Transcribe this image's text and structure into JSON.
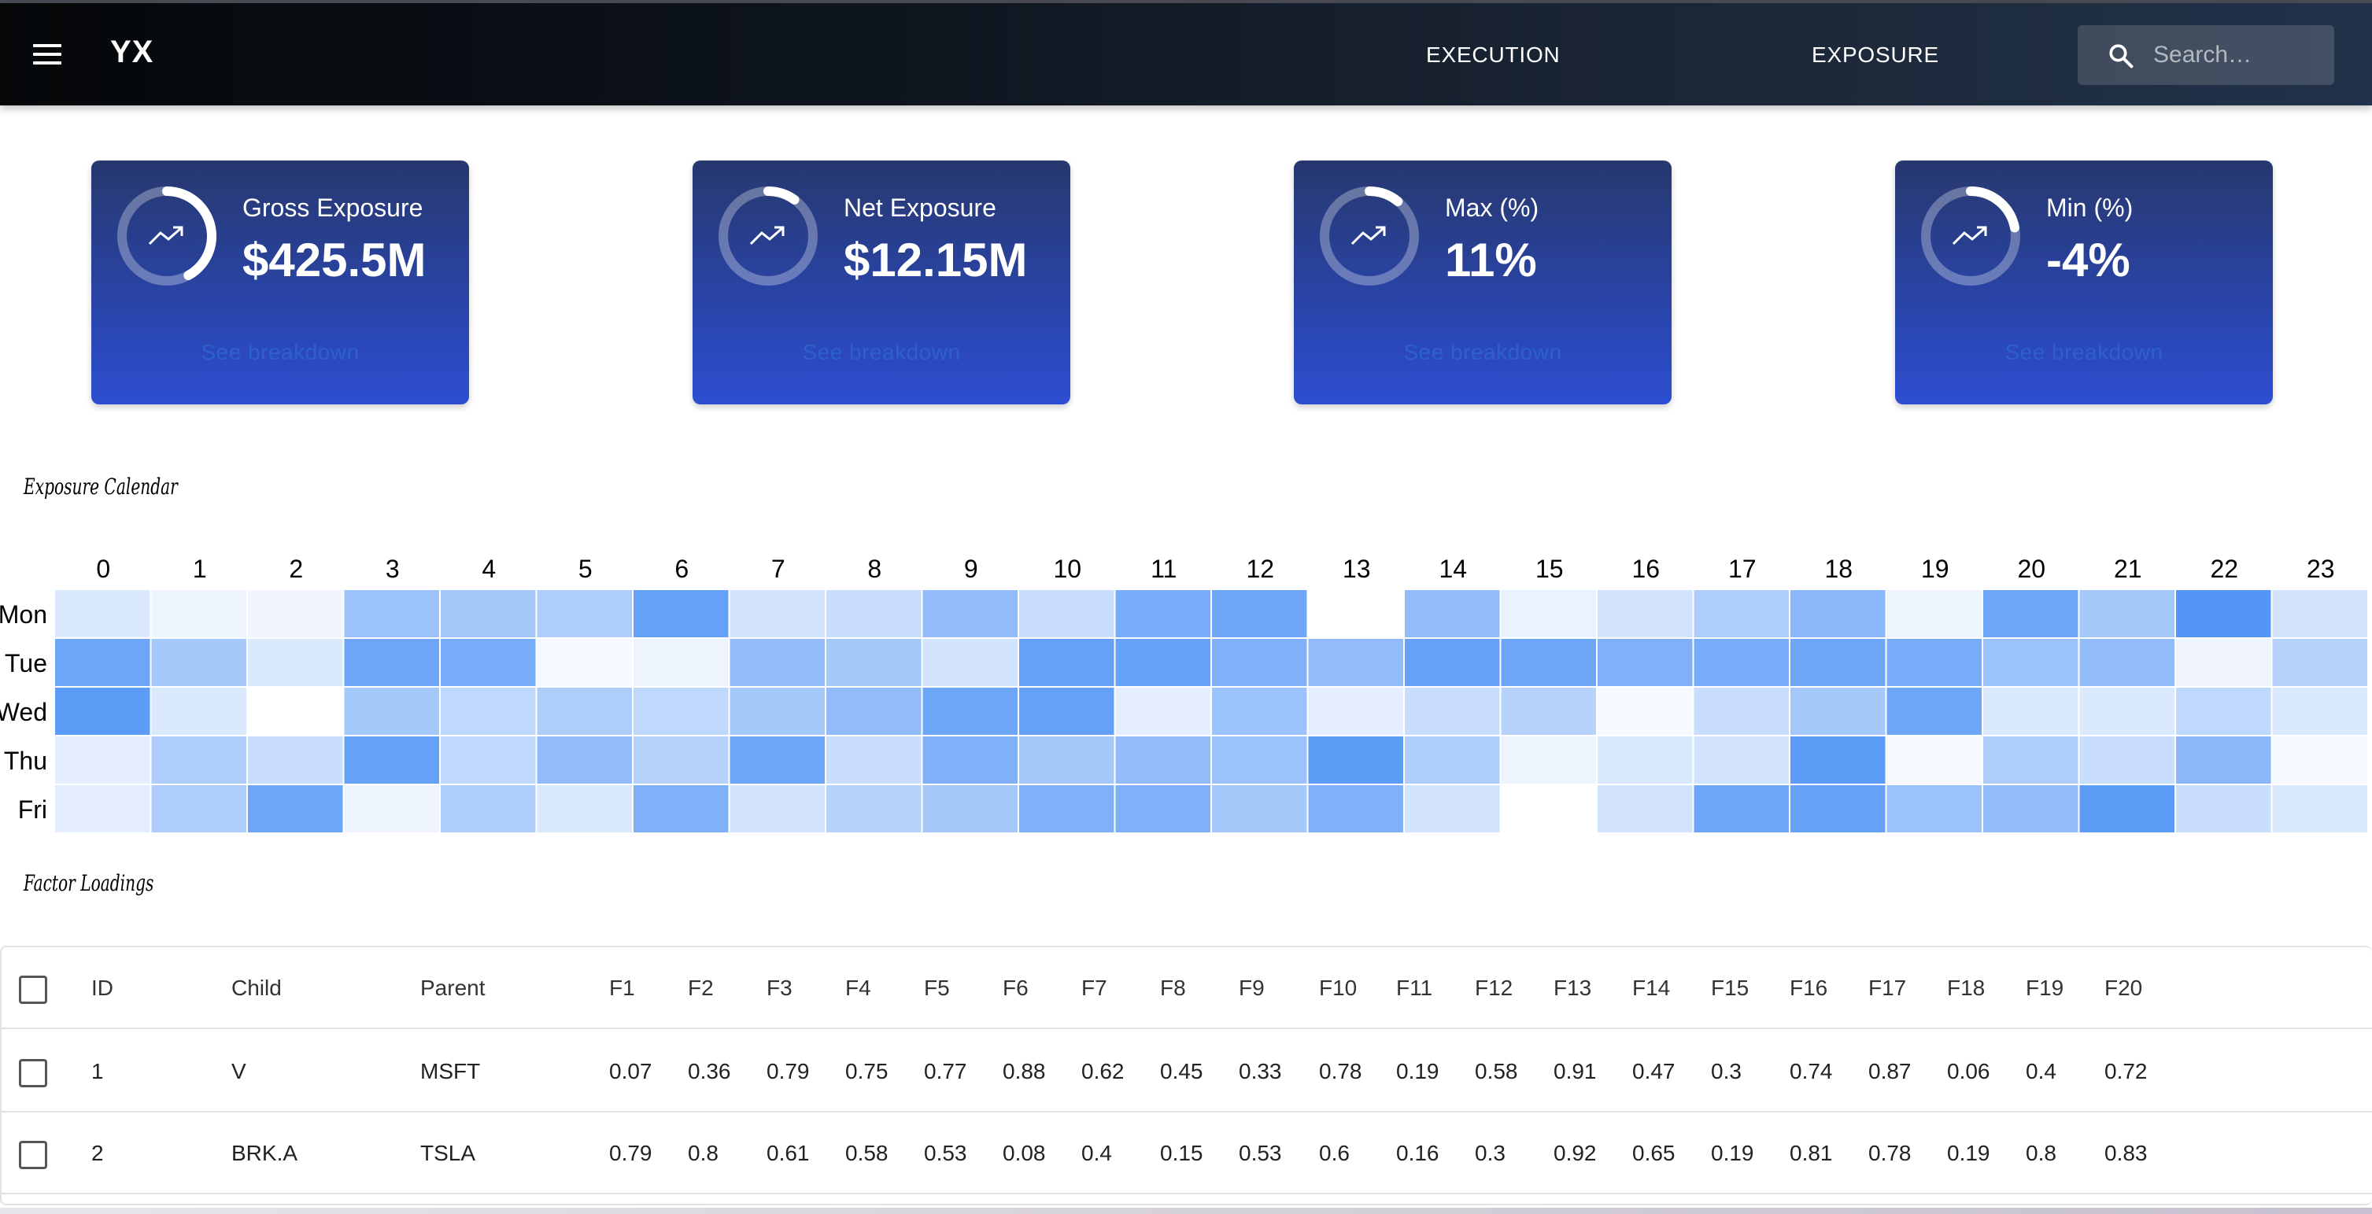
{
  "app": {
    "brand": "YX",
    "nav": [
      {
        "label": "EXECUTION"
      },
      {
        "label": "EXPOSURE"
      }
    ],
    "search": {
      "placeholder": "Search…",
      "value": ""
    }
  },
  "cards": [
    {
      "label": "Gross Exposure",
      "value": "$425.5M",
      "link": "See breakdown",
      "progress": 0.42
    },
    {
      "label": "Net Exposure",
      "value": "$12.15M",
      "link": "See breakdown",
      "progress": 0.1
    },
    {
      "label": "Max (%)",
      "value": "11%",
      "link": "See breakdown",
      "progress": 0.11
    },
    {
      "label": "Min (%)",
      "value": "-4%",
      "link": "See breakdown",
      "progress": 0.22
    }
  ],
  "calendar": {
    "title": "Exposure Calendar",
    "hours": [
      "0",
      "1",
      "2",
      "3",
      "4",
      "5",
      "6",
      "7",
      "8",
      "9",
      "10",
      "11",
      "12",
      "13",
      "14",
      "15",
      "16",
      "17",
      "18",
      "19",
      "20",
      "21",
      "22",
      "23"
    ],
    "days": [
      "Mon",
      "Tue",
      "Wed",
      "Thu",
      "Fri"
    ],
    "color_low": "#ffffff",
    "color_high": "#4a90f5"
  },
  "chart_data": {
    "type": "heatmap",
    "title": "Exposure Calendar",
    "x": [
      "0",
      "1",
      "2",
      "3",
      "4",
      "5",
      "6",
      "7",
      "8",
      "9",
      "10",
      "11",
      "12",
      "13",
      "14",
      "15",
      "16",
      "17",
      "18",
      "19",
      "20",
      "21",
      "22",
      "23"
    ],
    "y": [
      "Mon",
      "Tue",
      "Wed",
      "Thu",
      "Fri"
    ],
    "values": [
      [
        0.2,
        0.1,
        0.08,
        0.55,
        0.5,
        0.45,
        0.85,
        0.25,
        0.3,
        0.6,
        0.3,
        0.75,
        0.8,
        0.0,
        0.6,
        0.12,
        0.25,
        0.45,
        0.65,
        0.1,
        0.8,
        0.5,
        0.95,
        0.25
      ],
      [
        0.8,
        0.5,
        0.2,
        0.8,
        0.75,
        0.05,
        0.1,
        0.6,
        0.5,
        0.25,
        0.85,
        0.85,
        0.7,
        0.6,
        0.85,
        0.8,
        0.7,
        0.75,
        0.8,
        0.75,
        0.55,
        0.6,
        0.08,
        0.4
      ],
      [
        0.9,
        0.2,
        0.0,
        0.5,
        0.35,
        0.45,
        0.35,
        0.5,
        0.6,
        0.8,
        0.85,
        0.15,
        0.55,
        0.15,
        0.3,
        0.4,
        0.05,
        0.3,
        0.5,
        0.8,
        0.2,
        0.2,
        0.35,
        0.2
      ],
      [
        0.15,
        0.45,
        0.3,
        0.85,
        0.35,
        0.6,
        0.4,
        0.8,
        0.3,
        0.7,
        0.5,
        0.6,
        0.55,
        0.9,
        0.45,
        0.1,
        0.2,
        0.25,
        0.9,
        0.05,
        0.45,
        0.3,
        0.65,
        0.05
      ],
      [
        0.15,
        0.45,
        0.8,
        0.1,
        0.45,
        0.2,
        0.7,
        0.25,
        0.4,
        0.5,
        0.7,
        0.7,
        0.5,
        0.7,
        0.25,
        0.0,
        0.25,
        0.8,
        0.85,
        0.55,
        0.6,
        0.9,
        0.3,
        0.2
      ]
    ]
  },
  "factors": {
    "title": "Factor Loadings",
    "columns": [
      "ID",
      "Child",
      "Parent",
      "F1",
      "F2",
      "F3",
      "F4",
      "F5",
      "F6",
      "F7",
      "F8",
      "F9",
      "F10",
      "F11",
      "F12",
      "F13",
      "F14",
      "F15",
      "F16",
      "F17",
      "F18",
      "F19",
      "F20"
    ],
    "rows": [
      [
        "1",
        "V",
        "MSFT",
        "0.07",
        "0.36",
        "0.79",
        "0.75",
        "0.77",
        "0.88",
        "0.62",
        "0.45",
        "0.33",
        "0.78",
        "0.19",
        "0.58",
        "0.91",
        "0.47",
        "0.3",
        "0.74",
        "0.87",
        "0.06",
        "0.4",
        "0.72"
      ],
      [
        "2",
        "BRK.A",
        "TSLA",
        "0.79",
        "0.8",
        "0.61",
        "0.58",
        "0.53",
        "0.08",
        "0.4",
        "0.15",
        "0.53",
        "0.6",
        "0.16",
        "0.3",
        "0.92",
        "0.65",
        "0.19",
        "0.81",
        "0.78",
        "0.19",
        "0.8",
        "0.83"
      ]
    ]
  }
}
